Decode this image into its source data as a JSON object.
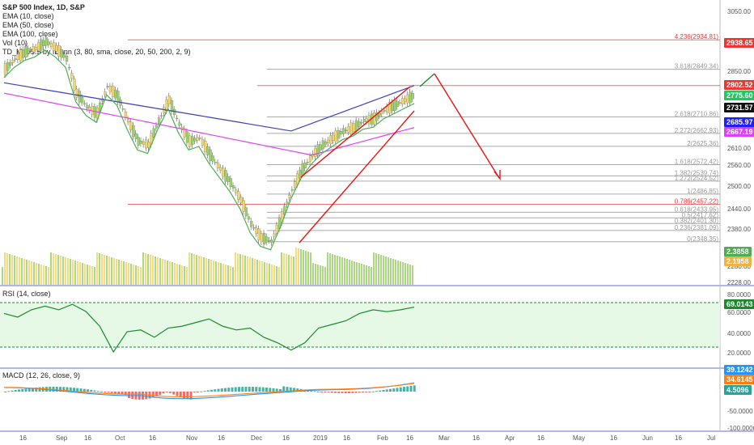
{
  "header": {
    "symbol": "S&P 500 Index, 1D, S&P",
    "indicators": [
      "EMA (10, close)",
      "EMA (50, close)",
      "EMA (100, close)",
      "Vol (10)",
      "TD_MAv5.5 by IDunn (3, 80, sma, close, 20, 50, 200, 2, 9)"
    ]
  },
  "price_axis": {
    "ticks": [
      "3050.00",
      "2850.00",
      "2720.00",
      "2610.00",
      "2560.00",
      "2500.00",
      "2440.00",
      "2380.00",
      "2280.00",
      "2228.00"
    ]
  },
  "price_badges": [
    {
      "label": "2938.65",
      "color": "#e53935"
    },
    {
      "label": "2802.52",
      "color": "#e53935"
    },
    {
      "label": "2775.60",
      "color": "#22c55e"
    },
    {
      "label": "2731.57",
      "color": "#111111"
    },
    {
      "label": "2685.97",
      "color": "#1e1eff"
    },
    {
      "label": "2667.19",
      "color": "#e040fb"
    },
    {
      "label": "2.3858",
      "color": "#4caf50"
    },
    {
      "label": "2.1958",
      "color": "#f5b041"
    }
  ],
  "fib_levels": [
    "4.236(2934.81)",
    "3.618(2849.34)",
    "2.618(2710.86)",
    "2.272(2662.93)",
    "2(2625.36)",
    "1.618(2572.42)",
    "1.382(2539.74)",
    "1.272(2524.52)",
    "1(2486.85)",
    "0.786(2457.22)",
    "0.618(2433.95)",
    "0.5(2417.62)",
    "0.382(2401.30)",
    "0.236(2381.09)",
    "0(2348.35)"
  ],
  "rsi": {
    "label": "RSI (14, close)",
    "ticks": [
      "80.0000",
      "60.0000",
      "40.0000",
      "20.0000"
    ],
    "badge": "69.0143",
    "badge_color": "#1b8a2e"
  },
  "macd": {
    "label": "MACD (12, 26, close, 9)",
    "ticks": [
      "-50.0000",
      "-100.0000"
    ],
    "badges": [
      {
        "label": "39.1242",
        "color": "#2196f3"
      },
      {
        "label": "34.6145",
        "color": "#ff7f0e"
      },
      {
        "label": "4.5096",
        "color": "#26a69a"
      }
    ]
  },
  "time_axis": [
    "16",
    "Sep",
    "16",
    "Oct",
    "16",
    "Nov",
    "16",
    "Dec",
    "16",
    "2019",
    "16",
    "Feb",
    "16",
    "Mar",
    "16",
    "Apr",
    "16",
    "May",
    "16",
    "Jun",
    "16",
    "Jul"
  ],
  "colors": {
    "up": "#f5d66a",
    "down": "#9bd36a",
    "rsi_line": "#1b8a2e",
    "rsi_fill": "#e6f9e6",
    "trend": "#e11",
    "ema10": "#4caf50",
    "ema50": "#3f3fbf",
    "ema100": "#e040fb"
  },
  "chart_data": {
    "type": "line",
    "series": [
      {
        "name": "S&P 500 Index",
        "values": [
          2850,
          2880,
          2900,
          2910,
          2930,
          2910,
          2880,
          2780,
          2740,
          2720,
          2800,
          2770,
          2700,
          2640,
          2630,
          2700,
          2760,
          2690,
          2640,
          2650,
          2600,
          2560,
          2520,
          2470,
          2400,
          2360,
          2350,
          2420,
          2500,
          2560,
          2600,
          2630,
          2650,
          2670,
          2680,
          2700,
          2706,
          2730,
          2745,
          2760,
          2775
        ]
      },
      {
        "name": "RSI (14, close)",
        "values": [
          62,
          58,
          66,
          70,
          66,
          72,
          64,
          48,
          20,
          42,
          44,
          36,
          46,
          48,
          52,
          56,
          48,
          44,
          46,
          36,
          30,
          22,
          30,
          46,
          50,
          54,
          62,
          66,
          64,
          66,
          69
        ]
      }
    ]
  }
}
